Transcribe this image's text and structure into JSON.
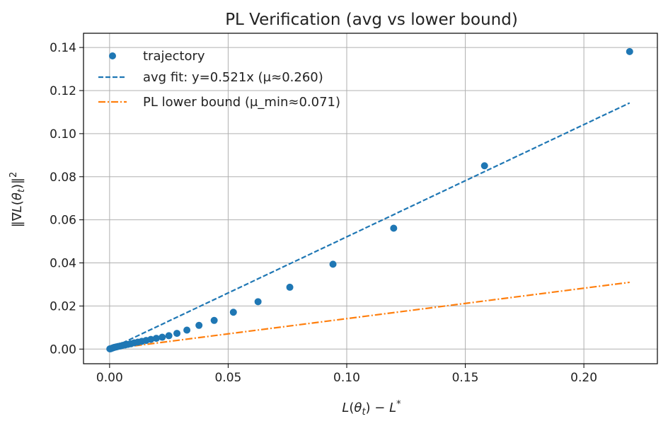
{
  "chart_data": {
    "type": "scatter",
    "title": "PL Verification (avg vs lower bound)",
    "xlabel": "L(θt) − L*",
    "ylabel": "‖∇L(θt)‖²",
    "xlim": [
      -0.011,
      0.231
    ],
    "ylim": [
      -0.0068,
      0.1466
    ],
    "grid": true,
    "legend_location": "top-left",
    "xticks": [
      0.0,
      0.05,
      0.1,
      0.15,
      0.2
    ],
    "xtick_labels": [
      "0.00",
      "0.05",
      "0.10",
      "0.15",
      "0.20"
    ],
    "yticks": [
      0.0,
      0.02,
      0.04,
      0.06,
      0.08,
      0.1,
      0.12,
      0.14
    ],
    "ytick_labels": [
      "0.00",
      "0.02",
      "0.04",
      "0.06",
      "0.08",
      "0.10",
      "0.12",
      "0.14"
    ],
    "series": [
      {
        "name": "trajectory",
        "kind": "scatter",
        "color": "#1f77b4",
        "points": [
          [
            0.0001,
            0.0001
          ],
          [
            0.0005,
            0.0002
          ],
          [
            0.001,
            0.0004
          ],
          [
            0.0015,
            0.0006
          ],
          [
            0.002,
            0.0008
          ],
          [
            0.0028,
            0.001
          ],
          [
            0.0036,
            0.0012
          ],
          [
            0.0045,
            0.0014
          ],
          [
            0.0055,
            0.0017
          ],
          [
            0.0066,
            0.0019
          ],
          [
            0.0078,
            0.0022
          ],
          [
            0.009,
            0.0025
          ],
          [
            0.0104,
            0.0029
          ],
          [
            0.0119,
            0.0032
          ],
          [
            0.0136,
            0.0036
          ],
          [
            0.0154,
            0.004
          ],
          [
            0.0174,
            0.0045
          ],
          [
            0.0197,
            0.005
          ],
          [
            0.0222,
            0.0055
          ],
          [
            0.025,
            0.0062
          ],
          [
            0.0284,
            0.0073
          ],
          [
            0.0326,
            0.0088
          ],
          [
            0.0377,
            0.011
          ],
          [
            0.0441,
            0.0133
          ],
          [
            0.0522,
            0.0171
          ],
          [
            0.0626,
            0.022
          ],
          [
            0.076,
            0.0287
          ],
          [
            0.0942,
            0.0394
          ],
          [
            0.1198,
            0.0561
          ],
          [
            0.1581,
            0.0851
          ],
          [
            0.2193,
            0.1381
          ]
        ]
      },
      {
        "name": "avg fit: y=0.521x (μ≈0.260)",
        "kind": "line",
        "style": "dashed",
        "color": "#1f77b4",
        "slope": 0.521,
        "x_range": [
          0.0,
          0.2193
        ]
      },
      {
        "name": "PL lower bound (μ_min≈0.071)",
        "kind": "line",
        "style": "dashdot",
        "color": "#ff7f0e",
        "slope": 0.1413,
        "x_range": [
          0.0,
          0.2193
        ]
      }
    ]
  }
}
